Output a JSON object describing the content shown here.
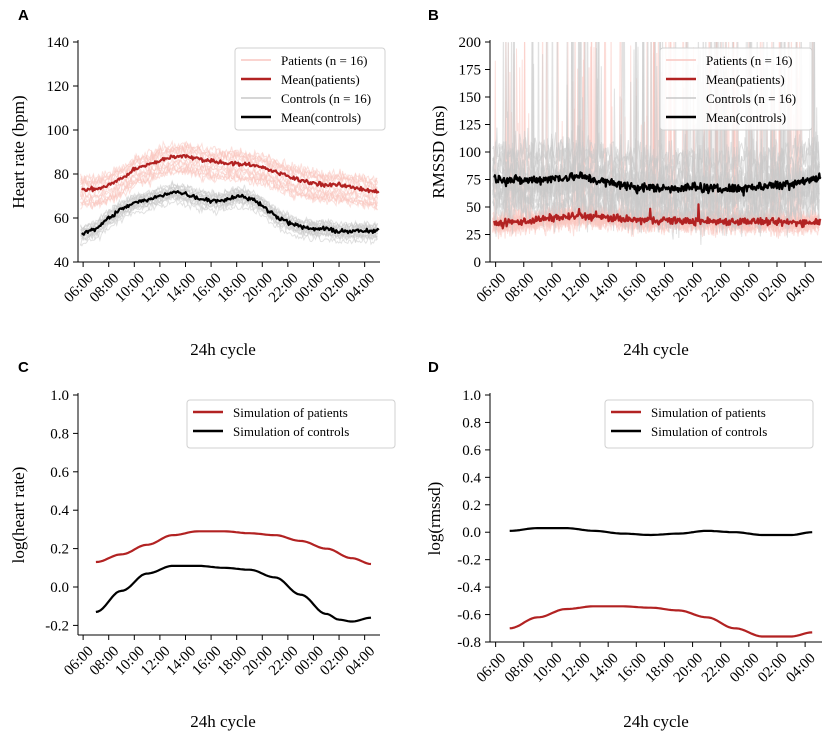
{
  "colors": {
    "patient_mean": "#b22222",
    "patient_light": "#f9c6c0",
    "control_mean": "#000000",
    "control_light": "#c8c8c8"
  },
  "chart_data": [
    {
      "id": "A",
      "panel_label": "A",
      "type": "line",
      "xlabel": "24h cycle",
      "ylabel": "Heart rate (bpm)",
      "xticks": [
        "06:00",
        "08:00",
        "10:00",
        "12:00",
        "14:00",
        "16:00",
        "18:00",
        "20:00",
        "22:00",
        "00:00",
        "02:00",
        "04:00"
      ],
      "x_hours_from_0600": [
        0,
        2,
        4,
        6,
        8,
        10,
        12,
        14,
        16,
        18,
        20,
        22
      ],
      "xlim": [
        -0.4,
        23.2
      ],
      "ylim": [
        40,
        140
      ],
      "yticks": [
        40,
        60,
        80,
        100,
        120,
        140
      ],
      "ytick_labels": [
        "40",
        "60",
        "80",
        "100",
        "120",
        "140"
      ],
      "legend": [
        "Patients (n = 16)",
        "Mean(patients)",
        "Controls (n = 16)",
        "Mean(controls)"
      ],
      "series": [
        {
          "name": "Mean(patients)",
          "x": [
            0,
            1,
            2,
            3,
            4,
            5,
            6,
            7,
            8,
            9,
            10,
            11,
            12,
            13,
            14,
            15,
            16,
            17,
            18,
            19,
            20,
            21,
            22,
            23
          ],
          "values": [
            73,
            73,
            75,
            78,
            82,
            84,
            86,
            88,
            88,
            87,
            86,
            85,
            85,
            84,
            83,
            81,
            79,
            77,
            76,
            75,
            75,
            74,
            73,
            72
          ]
        },
        {
          "name": "Mean(controls)",
          "x": [
            0,
            1,
            2,
            3,
            4,
            5,
            6,
            7,
            8,
            9,
            10,
            11,
            12,
            13,
            14,
            15,
            16,
            17,
            18,
            19,
            20,
            21,
            22,
            23
          ],
          "values": [
            53,
            55,
            60,
            64,
            67,
            68,
            70,
            72,
            71,
            69,
            68,
            68,
            70,
            69,
            66,
            61,
            58,
            56,
            55,
            55,
            54,
            54,
            54,
            54
          ]
        }
      ]
    },
    {
      "id": "B",
      "panel_label": "B",
      "type": "line",
      "xlabel": "24h cycle",
      "ylabel": "RMSSD (ms)",
      "xticks": [
        "06:00",
        "08:00",
        "10:00",
        "12:00",
        "14:00",
        "16:00",
        "18:00",
        "20:00",
        "22:00",
        "00:00",
        "02:00",
        "04:00"
      ],
      "x_hours_from_0600": [
        0,
        2,
        4,
        6,
        8,
        10,
        12,
        14,
        16,
        18,
        20,
        22
      ],
      "xlim": [
        -0.4,
        23.2
      ],
      "ylim": [
        0,
        200
      ],
      "yticks": [
        0,
        25,
        50,
        75,
        100,
        125,
        150,
        175,
        200
      ],
      "ytick_labels": [
        "0",
        "25",
        "50",
        "75",
        "100",
        "125",
        "150",
        "175",
        "200"
      ],
      "legend": [
        "Patients (n = 16)",
        "Mean(patients)",
        "Controls (n = 16)",
        "Mean(controls)"
      ],
      "series": [
        {
          "name": "Mean(patients)",
          "x": [
            0,
            2,
            4,
            6,
            8,
            10,
            12,
            14,
            16,
            18,
            20,
            22,
            23
          ],
          "values": [
            35,
            37,
            40,
            42,
            40,
            38,
            38,
            37,
            37,
            37,
            36,
            36,
            37
          ]
        },
        {
          "name": "Mean(controls)",
          "x": [
            0,
            2,
            4,
            6,
            8,
            10,
            12,
            14,
            16,
            18,
            20,
            22,
            23
          ],
          "values": [
            76,
            74,
            76,
            78,
            72,
            68,
            67,
            68,
            66,
            68,
            70,
            74,
            77
          ]
        }
      ]
    },
    {
      "id": "C",
      "panel_label": "C",
      "type": "line",
      "xlabel": "24h cycle",
      "ylabel": "log(heart rate)",
      "xticks": [
        "06:00",
        "08:00",
        "10:00",
        "12:00",
        "14:00",
        "16:00",
        "18:00",
        "20:00",
        "22:00",
        "00:00",
        "02:00",
        "04:00"
      ],
      "x_hours_from_0600": [
        0,
        2,
        4,
        6,
        8,
        10,
        12,
        14,
        16,
        18,
        20,
        22
      ],
      "xlim": [
        -0.4,
        23.2
      ],
      "ylim": [
        -0.25,
        1.0
      ],
      "yticks": [
        -0.2,
        0.0,
        0.2,
        0.4,
        0.6,
        0.8,
        1.0
      ],
      "ytick_labels": [
        "-0.2",
        "0.0",
        "0.2",
        "0.4",
        "0.6",
        "0.8",
        "1.0"
      ],
      "legend": [
        "Simulation of patients",
        "Simulation of controls"
      ],
      "series": [
        {
          "name": "Simulation of patients",
          "x": [
            1,
            3,
            5,
            7,
            9,
            11,
            13,
            15,
            17,
            19,
            21,
            22.5
          ],
          "values": [
            0.13,
            0.17,
            0.22,
            0.27,
            0.29,
            0.29,
            0.28,
            0.27,
            0.24,
            0.2,
            0.15,
            0.12
          ]
        },
        {
          "name": "Simulation of controls",
          "x": [
            1,
            3,
            5,
            7,
            9,
            11,
            13,
            15,
            17,
            19,
            20,
            21,
            22.5
          ],
          "values": [
            -0.13,
            -0.02,
            0.07,
            0.11,
            0.11,
            0.1,
            0.09,
            0.05,
            -0.04,
            -0.14,
            -0.17,
            -0.18,
            -0.16
          ]
        }
      ]
    },
    {
      "id": "D",
      "panel_label": "D",
      "type": "line",
      "xlabel": "24h cycle",
      "ylabel": "log(rmssd)",
      "xticks": [
        "06:00",
        "08:00",
        "10:00",
        "12:00",
        "14:00",
        "16:00",
        "18:00",
        "20:00",
        "22:00",
        "00:00",
        "02:00",
        "04:00"
      ],
      "x_hours_from_0600": [
        0,
        2,
        4,
        6,
        8,
        10,
        12,
        14,
        16,
        18,
        20,
        22
      ],
      "xlim": [
        -0.4,
        23.2
      ],
      "ylim": [
        -0.8,
        1.0
      ],
      "yticks": [
        -0.8,
        -0.6,
        -0.4,
        -0.2,
        0.0,
        0.2,
        0.4,
        0.6,
        0.8,
        1.0
      ],
      "ytick_labels": [
        "-0.8",
        "-0.6",
        "-0.4",
        "-0.2",
        "0.0",
        "0.2",
        "0.4",
        "0.6",
        "0.8",
        "1.0"
      ],
      "legend": [
        "Simulation of patients",
        "Simulation of controls"
      ],
      "series": [
        {
          "name": "Simulation of patients",
          "x": [
            1,
            3,
            5,
            7,
            9,
            11,
            13,
            15,
            17,
            19,
            21,
            22.5
          ],
          "values": [
            -0.7,
            -0.62,
            -0.56,
            -0.54,
            -0.54,
            -0.55,
            -0.57,
            -0.62,
            -0.7,
            -0.76,
            -0.76,
            -0.73
          ]
        },
        {
          "name": "Simulation of controls",
          "x": [
            1,
            3,
            5,
            7,
            9,
            11,
            13,
            15,
            17,
            19,
            21,
            22.5
          ],
          "values": [
            0.01,
            0.03,
            0.03,
            0.01,
            -0.01,
            -0.02,
            -0.01,
            0.01,
            0.0,
            -0.02,
            -0.02,
            0.0
          ]
        }
      ]
    }
  ]
}
